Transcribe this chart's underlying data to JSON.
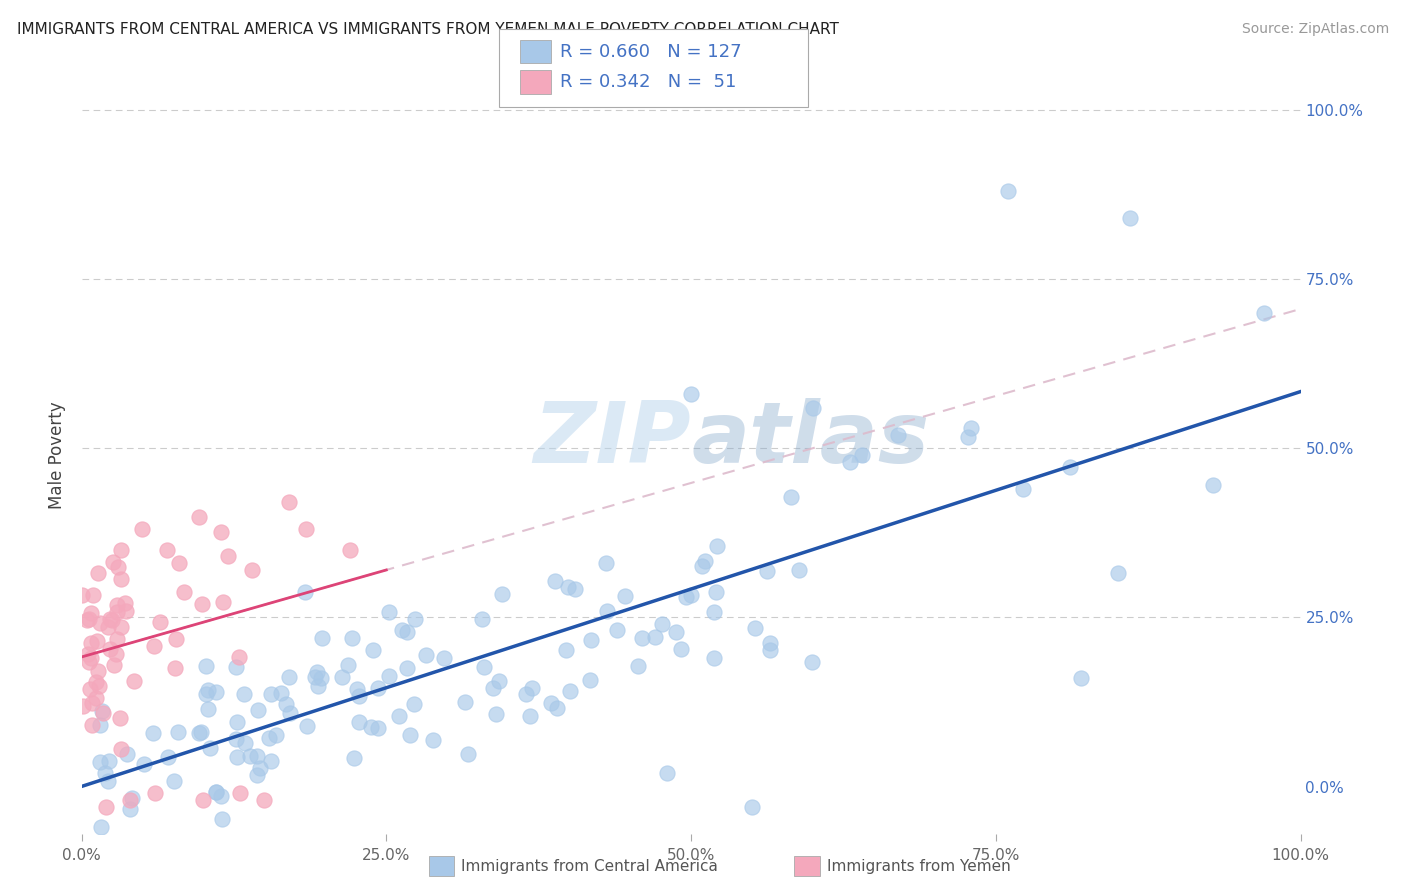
{
  "title": "IMMIGRANTS FROM CENTRAL AMERICA VS IMMIGRANTS FROM YEMEN MALE POVERTY CORRELATION CHART",
  "source": "Source: ZipAtlas.com",
  "xlabel_blue": "Immigrants from Central America",
  "xlabel_pink": "Immigrants from Yemen",
  "ylabel": "Male Poverty",
  "R_blue": 0.66,
  "N_blue": 127,
  "R_pink": 0.342,
  "N_pink": 51,
  "blue_color": "#a8c8e8",
  "pink_color": "#f4a8bc",
  "blue_scatter_edge": "#a8c8e8",
  "pink_scatter_edge": "#f4a8bc",
  "blue_line_color": "#2255aa",
  "pink_line_color": "#dd4477",
  "dashed_line_color": "#cccccc",
  "watermark_color": "#c8ddf0",
  "axis_tick_color": "#4472c4",
  "grid_color": "#cccccc",
  "background_color": "#ffffff",
  "figsize": [
    14.06,
    8.92
  ],
  "dpi": 100
}
